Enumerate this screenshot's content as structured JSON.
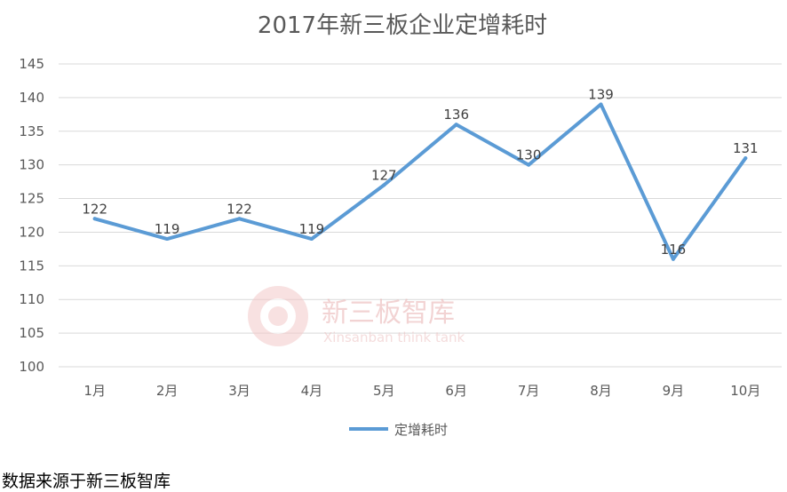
{
  "chart_data": {
    "type": "line",
    "title": "2017年新三板企业定增耗时",
    "categories": [
      "1月",
      "2月",
      "3月",
      "4月",
      "5月",
      "6月",
      "7月",
      "8月",
      "9月",
      "10月"
    ],
    "series": [
      {
        "name": "定增耗时",
        "values": [
          122,
          119,
          122,
          119,
          127,
          136,
          130,
          139,
          116,
          131
        ]
      }
    ],
    "ylim": [
      100,
      145
    ],
    "yticks": [
      100,
      105,
      110,
      115,
      120,
      125,
      130,
      135,
      140,
      145
    ],
    "grid": true,
    "legend": "bottom",
    "color": "#5b9bd5"
  },
  "watermark": {
    "text": "新三板智库",
    "subtext": "Xinsanban think tank"
  },
  "source": "数据来源于新三板智库"
}
